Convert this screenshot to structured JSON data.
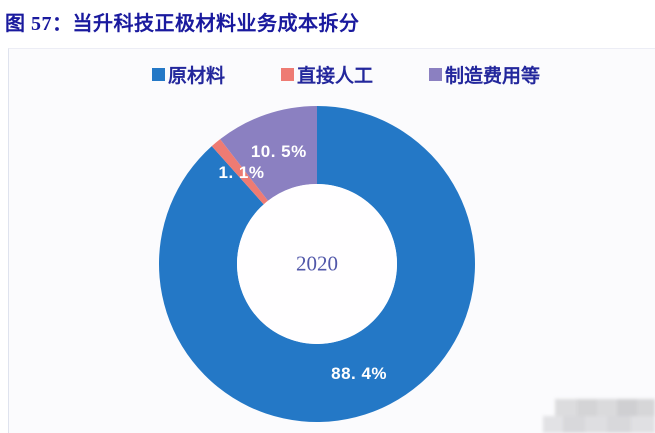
{
  "title": "图 57：当升科技正极材料业务成本拆分",
  "chart_data": {
    "type": "pie",
    "subtype": "donut",
    "title": "当升科技正极材料业务成本拆分",
    "center_label": "2020",
    "legend_position": "top",
    "unit": "%",
    "start_angle_deg": 0,
    "direction": "clockwise",
    "categories": [
      "原材料",
      "直接人工",
      "制造费用等"
    ],
    "series": [
      {
        "name": "原材料",
        "value": 88.4,
        "display_label": "88. 4%",
        "color": "#2478c6"
      },
      {
        "name": "直接人工",
        "value": 1.1,
        "display_label": "1. 1%",
        "color": "#ee7b73"
      },
      {
        "name": "制造费用等",
        "value": 10.5,
        "display_label": "10. 5%",
        "color": "#8b80c1"
      }
    ]
  },
  "colors": {
    "title_text": "#1a1a9e",
    "legend_text": "#23279c",
    "panel_background": "#fbfbfd",
    "donut_hole": "#fffeff",
    "center_label_text": "#5157a9"
  }
}
